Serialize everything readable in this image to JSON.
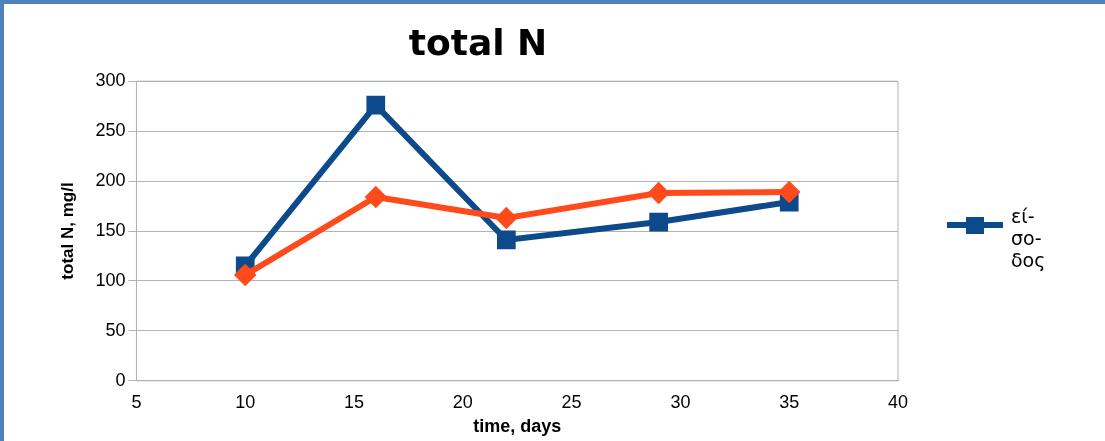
{
  "chart_data": {
    "type": "line",
    "title": "total N",
    "xlabel": "time, days",
    "ylabel": "total N, mg/l",
    "xlim": [
      5,
      40
    ],
    "xticks": [
      5,
      10,
      15,
      20,
      25,
      30,
      35,
      40
    ],
    "ylim": [
      0,
      300
    ],
    "yticks": [
      0,
      50,
      100,
      150,
      200,
      250,
      300
    ],
    "grid": "y",
    "legend": "right",
    "series": [
      {
        "name": "εί-σο-δος",
        "color": "#0d4a8c",
        "marker": "square",
        "x": [
          10,
          16,
          22,
          29,
          35
        ],
        "values": [
          115,
          276,
          141,
          159,
          179
        ]
      },
      {
        "color": "#ff4a1c",
        "marker": "diamond",
        "x": [
          10,
          16,
          22,
          29,
          35
        ],
        "values": [
          106,
          184,
          163,
          188,
          189
        ]
      }
    ]
  }
}
